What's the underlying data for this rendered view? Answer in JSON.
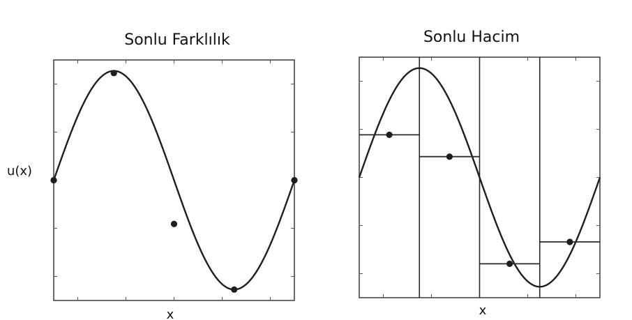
{
  "chart_data": [
    {
      "type": "line",
      "title": "Sonlu Farklılık",
      "xlabel": "x",
      "ylabel": "u(x)",
      "xlim": [
        0,
        1
      ],
      "ylim": [
        -1.1,
        1.1
      ],
      "grid": false,
      "series": [
        {
          "kind": "curve",
          "function": "sin(2*pi*x)"
        },
        {
          "kind": "points",
          "x": [
            0,
            0.25,
            0.5,
            0.75,
            1
          ],
          "y": [
            0.0,
            0.98,
            -0.4,
            -1.0,
            0.0
          ]
        }
      ]
    },
    {
      "type": "line",
      "title": "Sonlu Hacim",
      "xlabel": "x",
      "ylabel": "",
      "xlim": [
        0,
        1
      ],
      "ylim": [
        -1.1,
        1.1
      ],
      "grid": false,
      "cell_edges": [
        0,
        0.25,
        0.5,
        0.75,
        1
      ],
      "series": [
        {
          "kind": "curve",
          "function": "sin(2*pi*x)"
        },
        {
          "kind": "cell_averages",
          "x": [
            0.125,
            0.375,
            0.625,
            0.875
          ],
          "y": [
            0.39,
            0.19,
            -0.79,
            -0.59
          ]
        }
      ]
    }
  ]
}
